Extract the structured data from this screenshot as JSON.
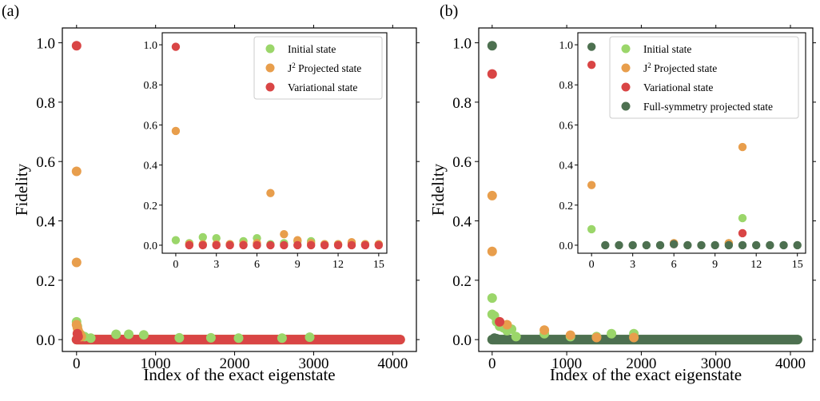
{
  "colors": {
    "initial": "#9bd66a",
    "projected": "#e89e4c",
    "variational": "#d94545",
    "full_symmetry": "#4d7050"
  },
  "chart_data": [
    {
      "type": "scatter",
      "panel_label": "(a)",
      "xlabel": "Index of the exact eigenstate",
      "ylabel": "Fidelity",
      "xlim": [
        -180,
        4300
      ],
      "ylim": [
        -0.04,
        1.05
      ],
      "xticks": [
        0,
        1000,
        2000,
        3000,
        4000
      ],
      "xtick_labels": [
        "0",
        "1000",
        "2000",
        "3000",
        "4000"
      ],
      "yticks": [
        0.0,
        0.2,
        0.4,
        0.6,
        0.8,
        1.0
      ],
      "ytick_labels": [
        "0.0",
        "0.2",
        "0.4",
        "0.6",
        "0.8",
        "1.0"
      ],
      "band": {
        "from": 0,
        "to": 4095,
        "series": [
          "initial",
          "projected",
          "variational"
        ]
      },
      "series": [
        {
          "key": "initial",
          "name": "Initial state",
          "x": [
            0,
            10,
            20,
            40,
            60,
            100,
            180,
            500,
            660,
            850,
            1300,
            1700,
            2050,
            2600,
            2950
          ],
          "y": [
            0.06,
            0.045,
            0.03,
            0.02,
            0.015,
            0.01,
            0.005,
            0.018,
            0.018,
            0.016,
            0.006,
            0.006,
            0.005,
            0.005,
            0.008
          ]
        },
        {
          "key": "projected",
          "name": "J² Projected state",
          "x": [
            0,
            0,
            0,
            10,
            20,
            40,
            60
          ],
          "y": [
            0.567,
            0.26,
            0.05,
            0.04,
            0.03,
            0.02,
            0.01
          ]
        },
        {
          "key": "variational",
          "name": "Variational state",
          "x": [
            0,
            10,
            20
          ],
          "y": [
            0.99,
            0.02,
            0.01
          ]
        }
      ],
      "inset": {
        "xlim": [
          -1.0,
          15.6
        ],
        "ylim": [
          -0.04,
          1.06
        ],
        "xticks": [
          0,
          3,
          6,
          9,
          12,
          15
        ],
        "xtick_labels": [
          "0",
          "3",
          "6",
          "9",
          "12",
          "15"
        ],
        "yticks": [
          0.0,
          0.2,
          0.4,
          0.6,
          0.8,
          1.0
        ],
        "ytick_labels": [
          "0.0",
          "0.2",
          "0.4",
          "0.6",
          "0.8",
          "1.0"
        ],
        "legend": [
          "initial",
          "projected",
          "variational"
        ],
        "series": [
          {
            "key": "initial",
            "x": [
              0,
              1,
              2,
              3,
              4,
              5,
              6,
              7,
              8,
              9,
              10,
              11,
              12,
              13,
              14,
              15
            ],
            "y": [
              0.025,
              0.01,
              0.04,
              0.035,
              0.005,
              0.02,
              0.035,
              0.005,
              0.01,
              0.02,
              0.02,
              0.005,
              0.005,
              0.01,
              0.005,
              0.005
            ]
          },
          {
            "key": "projected",
            "x": [
              0,
              1,
              2,
              3,
              4,
              5,
              6,
              7,
              8,
              9,
              10,
              11,
              12,
              13,
              14,
              15
            ],
            "y": [
              0.57,
              0.005,
              0.005,
              0.005,
              0.005,
              0.005,
              0.01,
              0.26,
              0.055,
              0.025,
              0.01,
              0.005,
              0.005,
              0.015,
              0.005,
              0.005
            ]
          },
          {
            "key": "variational",
            "x": [
              0,
              1,
              2,
              3,
              4,
              5,
              6,
              7,
              8,
              9,
              10,
              11,
              12,
              13,
              14,
              15
            ],
            "y": [
              0.99,
              0.0,
              0.0,
              0.0,
              0.0,
              0.0,
              0.0,
              0.0,
              0.0,
              0.0,
              0.0,
              0.0,
              0.0,
              0.0,
              0.0,
              0.0
            ]
          }
        ]
      }
    },
    {
      "type": "scatter",
      "panel_label": "(b)",
      "xlabel": "Index of the exact eigenstate",
      "ylabel": "Fidelity",
      "xlim": [
        -180,
        4300
      ],
      "ylim": [
        -0.04,
        1.05
      ],
      "xticks": [
        0,
        1000,
        2000,
        3000,
        4000
      ],
      "xtick_labels": [
        "0",
        "1000",
        "2000",
        "3000",
        "4000"
      ],
      "yticks": [
        0.0,
        0.2,
        0.4,
        0.6,
        0.8,
        1.0
      ],
      "ytick_labels": [
        "0.0",
        "0.2",
        "0.4",
        "0.6",
        "0.8",
        "1.0"
      ],
      "band": {
        "from": 0,
        "to": 4095,
        "series": [
          "initial",
          "full_symmetry"
        ]
      },
      "series": [
        {
          "key": "initial",
          "name": "Initial state",
          "x": [
            0,
            0,
            30,
            60,
            100,
            150,
            200,
            260,
            320,
            700,
            1050,
            1400,
            1600,
            1900
          ],
          "y": [
            0.14,
            0.085,
            0.08,
            0.06,
            0.045,
            0.04,
            0.03,
            0.035,
            0.01,
            0.02,
            0.01,
            0.01,
            0.02,
            0.02
          ]
        },
        {
          "key": "projected",
          "name": "J² Projected state",
          "x": [
            0,
            0,
            100,
            200,
            700,
            1050,
            1400,
            1900
          ],
          "y": [
            0.485,
            0.297,
            0.06,
            0.05,
            0.032,
            0.015,
            0.007,
            0.007
          ]
        },
        {
          "key": "variational",
          "name": "Variational state",
          "x": [
            0,
            100
          ],
          "y": [
            0.895,
            0.06
          ]
        },
        {
          "key": "full_symmetry",
          "name": "Full-symmetry projected state",
          "x": [
            0,
            30,
            60
          ],
          "y": [
            0.99,
            0.005,
            0.003
          ]
        }
      ],
      "inset": {
        "xlim": [
          -1.0,
          15.6
        ],
        "ylim": [
          -0.04,
          1.06
        ],
        "xticks": [
          0,
          3,
          6,
          9,
          12,
          15
        ],
        "xtick_labels": [
          "0",
          "3",
          "6",
          "9",
          "12",
          "15"
        ],
        "yticks": [
          0.0,
          0.2,
          0.4,
          0.6,
          0.8,
          1.0
        ],
        "ytick_labels": [
          "0.0",
          "0.2",
          "0.4",
          "0.6",
          "0.8",
          "1.0"
        ],
        "legend": [
          "initial",
          "projected",
          "variational",
          "full_symmetry"
        ],
        "series": [
          {
            "key": "initial",
            "x": [
              0,
              6,
              10,
              11
            ],
            "y": [
              0.08,
              0.01,
              0.01,
              0.135
            ]
          },
          {
            "key": "projected",
            "x": [
              0,
              6,
              10,
              11
            ],
            "y": [
              0.3,
              0.01,
              0.01,
              0.49
            ]
          },
          {
            "key": "variational",
            "x": [
              0,
              6,
              11
            ],
            "y": [
              0.9,
              0.005,
              0.06
            ]
          },
          {
            "key": "full_symmetry",
            "x": [
              0,
              1,
              2,
              3,
              4,
              5,
              6,
              7,
              8,
              9,
              10,
              11,
              12,
              13,
              14,
              15
            ],
            "y": [
              0.99,
              0.0,
              0.0,
              0.0,
              0.0,
              0.0,
              0.005,
              0.0,
              0.0,
              0.0,
              0.0,
              0.0,
              0.0,
              0.0,
              0.0,
              0.0
            ]
          }
        ]
      }
    }
  ]
}
